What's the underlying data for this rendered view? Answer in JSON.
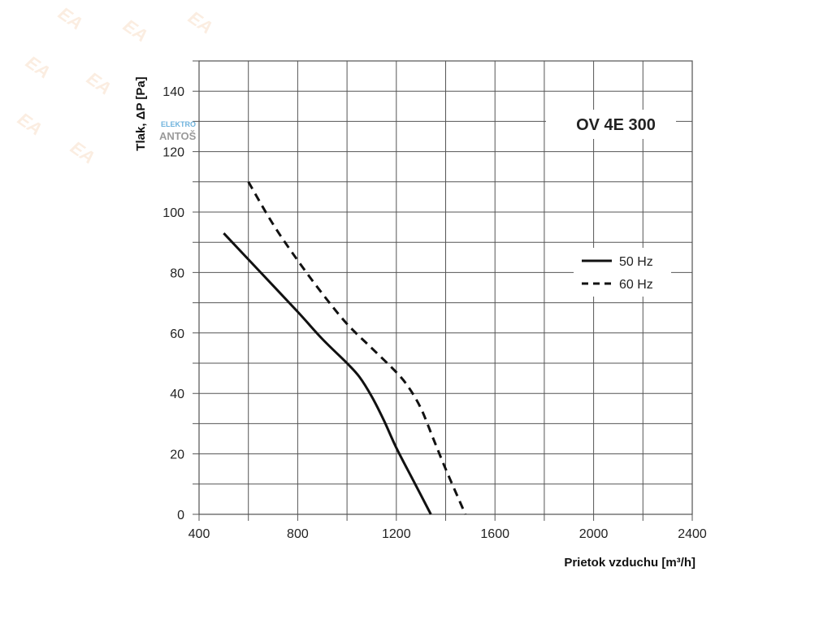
{
  "chart_data": {
    "type": "line",
    "title": "OV 4E 300",
    "xlabel": "Prietok vzduchu  [m³/h]",
    "ylabel": "Tlak, ΔP [Pa]",
    "xlim": [
      400,
      2400
    ],
    "ylim": [
      0,
      150
    ],
    "grid": true,
    "x_grid_step": 200,
    "y_grid_step": 10,
    "x_ticks": [
      400,
      800,
      1200,
      1600,
      2000,
      2400
    ],
    "y_ticks": [
      0,
      20,
      40,
      60,
      80,
      100,
      120,
      140
    ],
    "legend_position": "right",
    "series": [
      {
        "name": "50 Hz",
        "style": "solid",
        "x": [
          500,
          650,
          800,
          900,
          1000,
          1050,
          1100,
          1150,
          1200,
          1270,
          1340
        ],
        "y": [
          93,
          80,
          67,
          58,
          50,
          45.5,
          39,
          31,
          22,
          11,
          0
        ]
      },
      {
        "name": "60 Hz",
        "style": "dashed",
        "x": [
          600,
          700,
          800,
          900,
          1000,
          1100,
          1200,
          1250,
          1300,
          1350,
          1400,
          1480
        ],
        "y": [
          110,
          96,
          84,
          73,
          63,
          55,
          47,
          42,
          35,
          25,
          15,
          0
        ]
      }
    ]
  },
  "watermark": {
    "mark": "EA",
    "logo_top": "ELEKTRO",
    "logo_bottom": "ANTOŠ"
  }
}
